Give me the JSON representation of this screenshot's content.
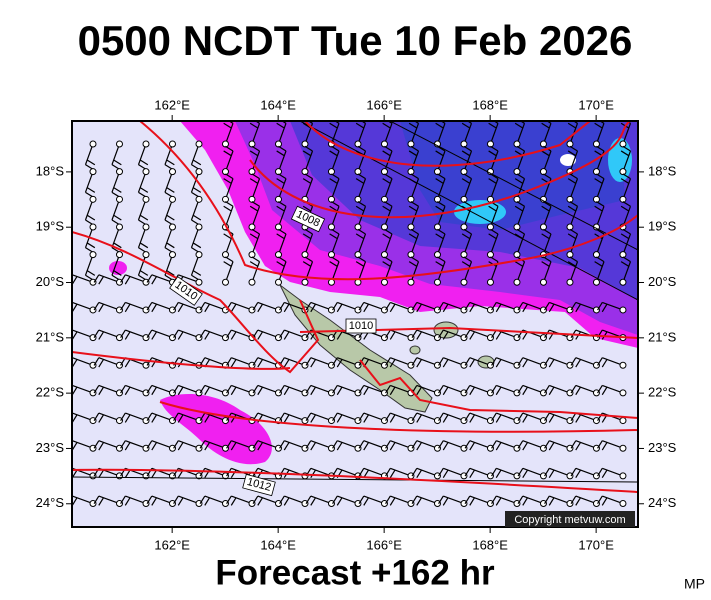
{
  "title": "0500 NCDT Tue 10 Feb 2026",
  "footer": "Forecast +162 hr",
  "signature": "MP",
  "copyright": "Copyright metvuw.com",
  "map": {
    "lonlim": [
      160.11,
      170.79
    ],
    "latlim": [
      -17.08,
      -24.42
    ],
    "lon_ticks": [
      {
        "value": 162,
        "label": "162°E"
      },
      {
        "value": 164,
        "label": "164°E"
      },
      {
        "value": 166,
        "label": "166°E"
      },
      {
        "value": 168,
        "label": "168°E"
      },
      {
        "value": 170,
        "label": "170°E"
      }
    ],
    "lat_ticks": [
      {
        "value": -18,
        "label": "18°S"
      },
      {
        "value": -19,
        "label": "19°S"
      },
      {
        "value": -20,
        "label": "20°S"
      },
      {
        "value": -21,
        "label": "21°S"
      },
      {
        "value": -22,
        "label": "22°S"
      },
      {
        "value": -23,
        "label": "23°S"
      },
      {
        "value": -24,
        "label": "24°S"
      }
    ],
    "isobar_labels": [
      "1008",
      "1010",
      "1010",
      "1012"
    ]
  }
}
